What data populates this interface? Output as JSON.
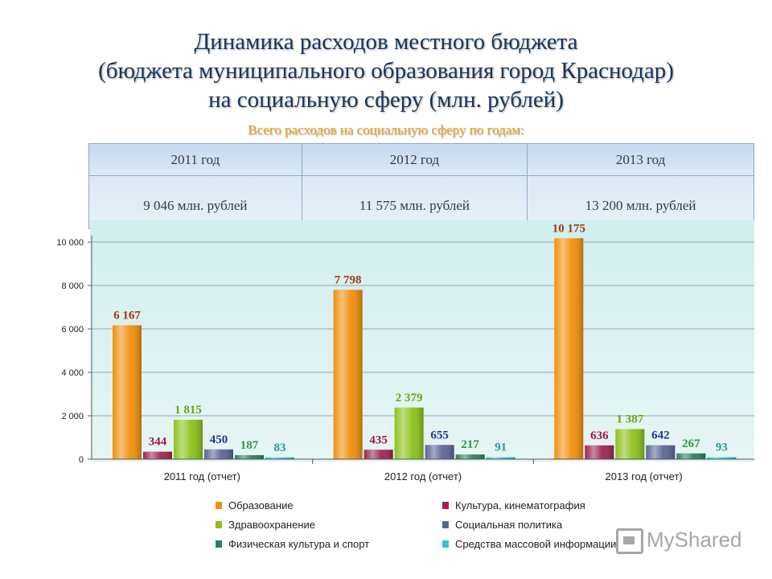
{
  "title_lines": [
    "Динамика расходов местного бюджета",
    "(бюджета муниципального образования город Краснодар)",
    "на социальную сферу (млн. рублей)"
  ],
  "subtitle": "Всего расходов на социальную сферу по годам:",
  "totals": {
    "years": [
      "2011 год",
      "2012 год",
      "2013 год"
    ],
    "amounts": [
      "9 046 млн. рублей",
      "11 575 млн. рублей",
      "13 200 млн. рублей"
    ]
  },
  "chart_data": {
    "type": "bar",
    "categories": [
      "2011 год (отчет)",
      "2012 год (отчет)",
      "2013 год (отчет)"
    ],
    "ylim": [
      0,
      10000
    ],
    "yticks": [
      0,
      2000,
      4000,
      6000,
      8000,
      10000
    ],
    "ytick_labels": [
      "0",
      "2 000",
      "4 000",
      "6 000",
      "8 000",
      "10 000"
    ],
    "grid": true,
    "legend_position": "bottom",
    "series": [
      {
        "name": "Образование",
        "color": "#f0900c",
        "values": [
          6167,
          7798,
          10175
        ],
        "labels": [
          "6 167",
          "7 798",
          "10 175"
        ],
        "label_color": "#a33a16"
      },
      {
        "name": "Культура, кинематография",
        "color": "#9c2550",
        "values": [
          344,
          435,
          636
        ],
        "labels": [
          "344",
          "435",
          "636"
        ],
        "label_color": "#a01840"
      },
      {
        "name": "Здравоохранение",
        "color": "#8cc21a",
        "values": [
          1815,
          2379,
          1387
        ],
        "labels": [
          "1 815",
          "2 379",
          "1 387"
        ],
        "label_color": "#6aa512"
      },
      {
        "name": "Социальная политика",
        "color": "#5c6494",
        "values": [
          450,
          655,
          642
        ],
        "labels": [
          "450",
          "655",
          "642"
        ],
        "label_color": "#1f3a8c"
      },
      {
        "name": "Физическая культура и спорт",
        "color": "#2a8060",
        "values": [
          187,
          217,
          267
        ],
        "labels": [
          "187",
          "217",
          "267"
        ],
        "label_color": "#2a9a3a"
      },
      {
        "name": "Средства массовой информации",
        "color": "#2cc6d0",
        "values": [
          83,
          91,
          93
        ],
        "labels": [
          "83",
          "91",
          "93"
        ],
        "label_color": "#2a9aa0"
      }
    ]
  },
  "watermark": "MyShared"
}
